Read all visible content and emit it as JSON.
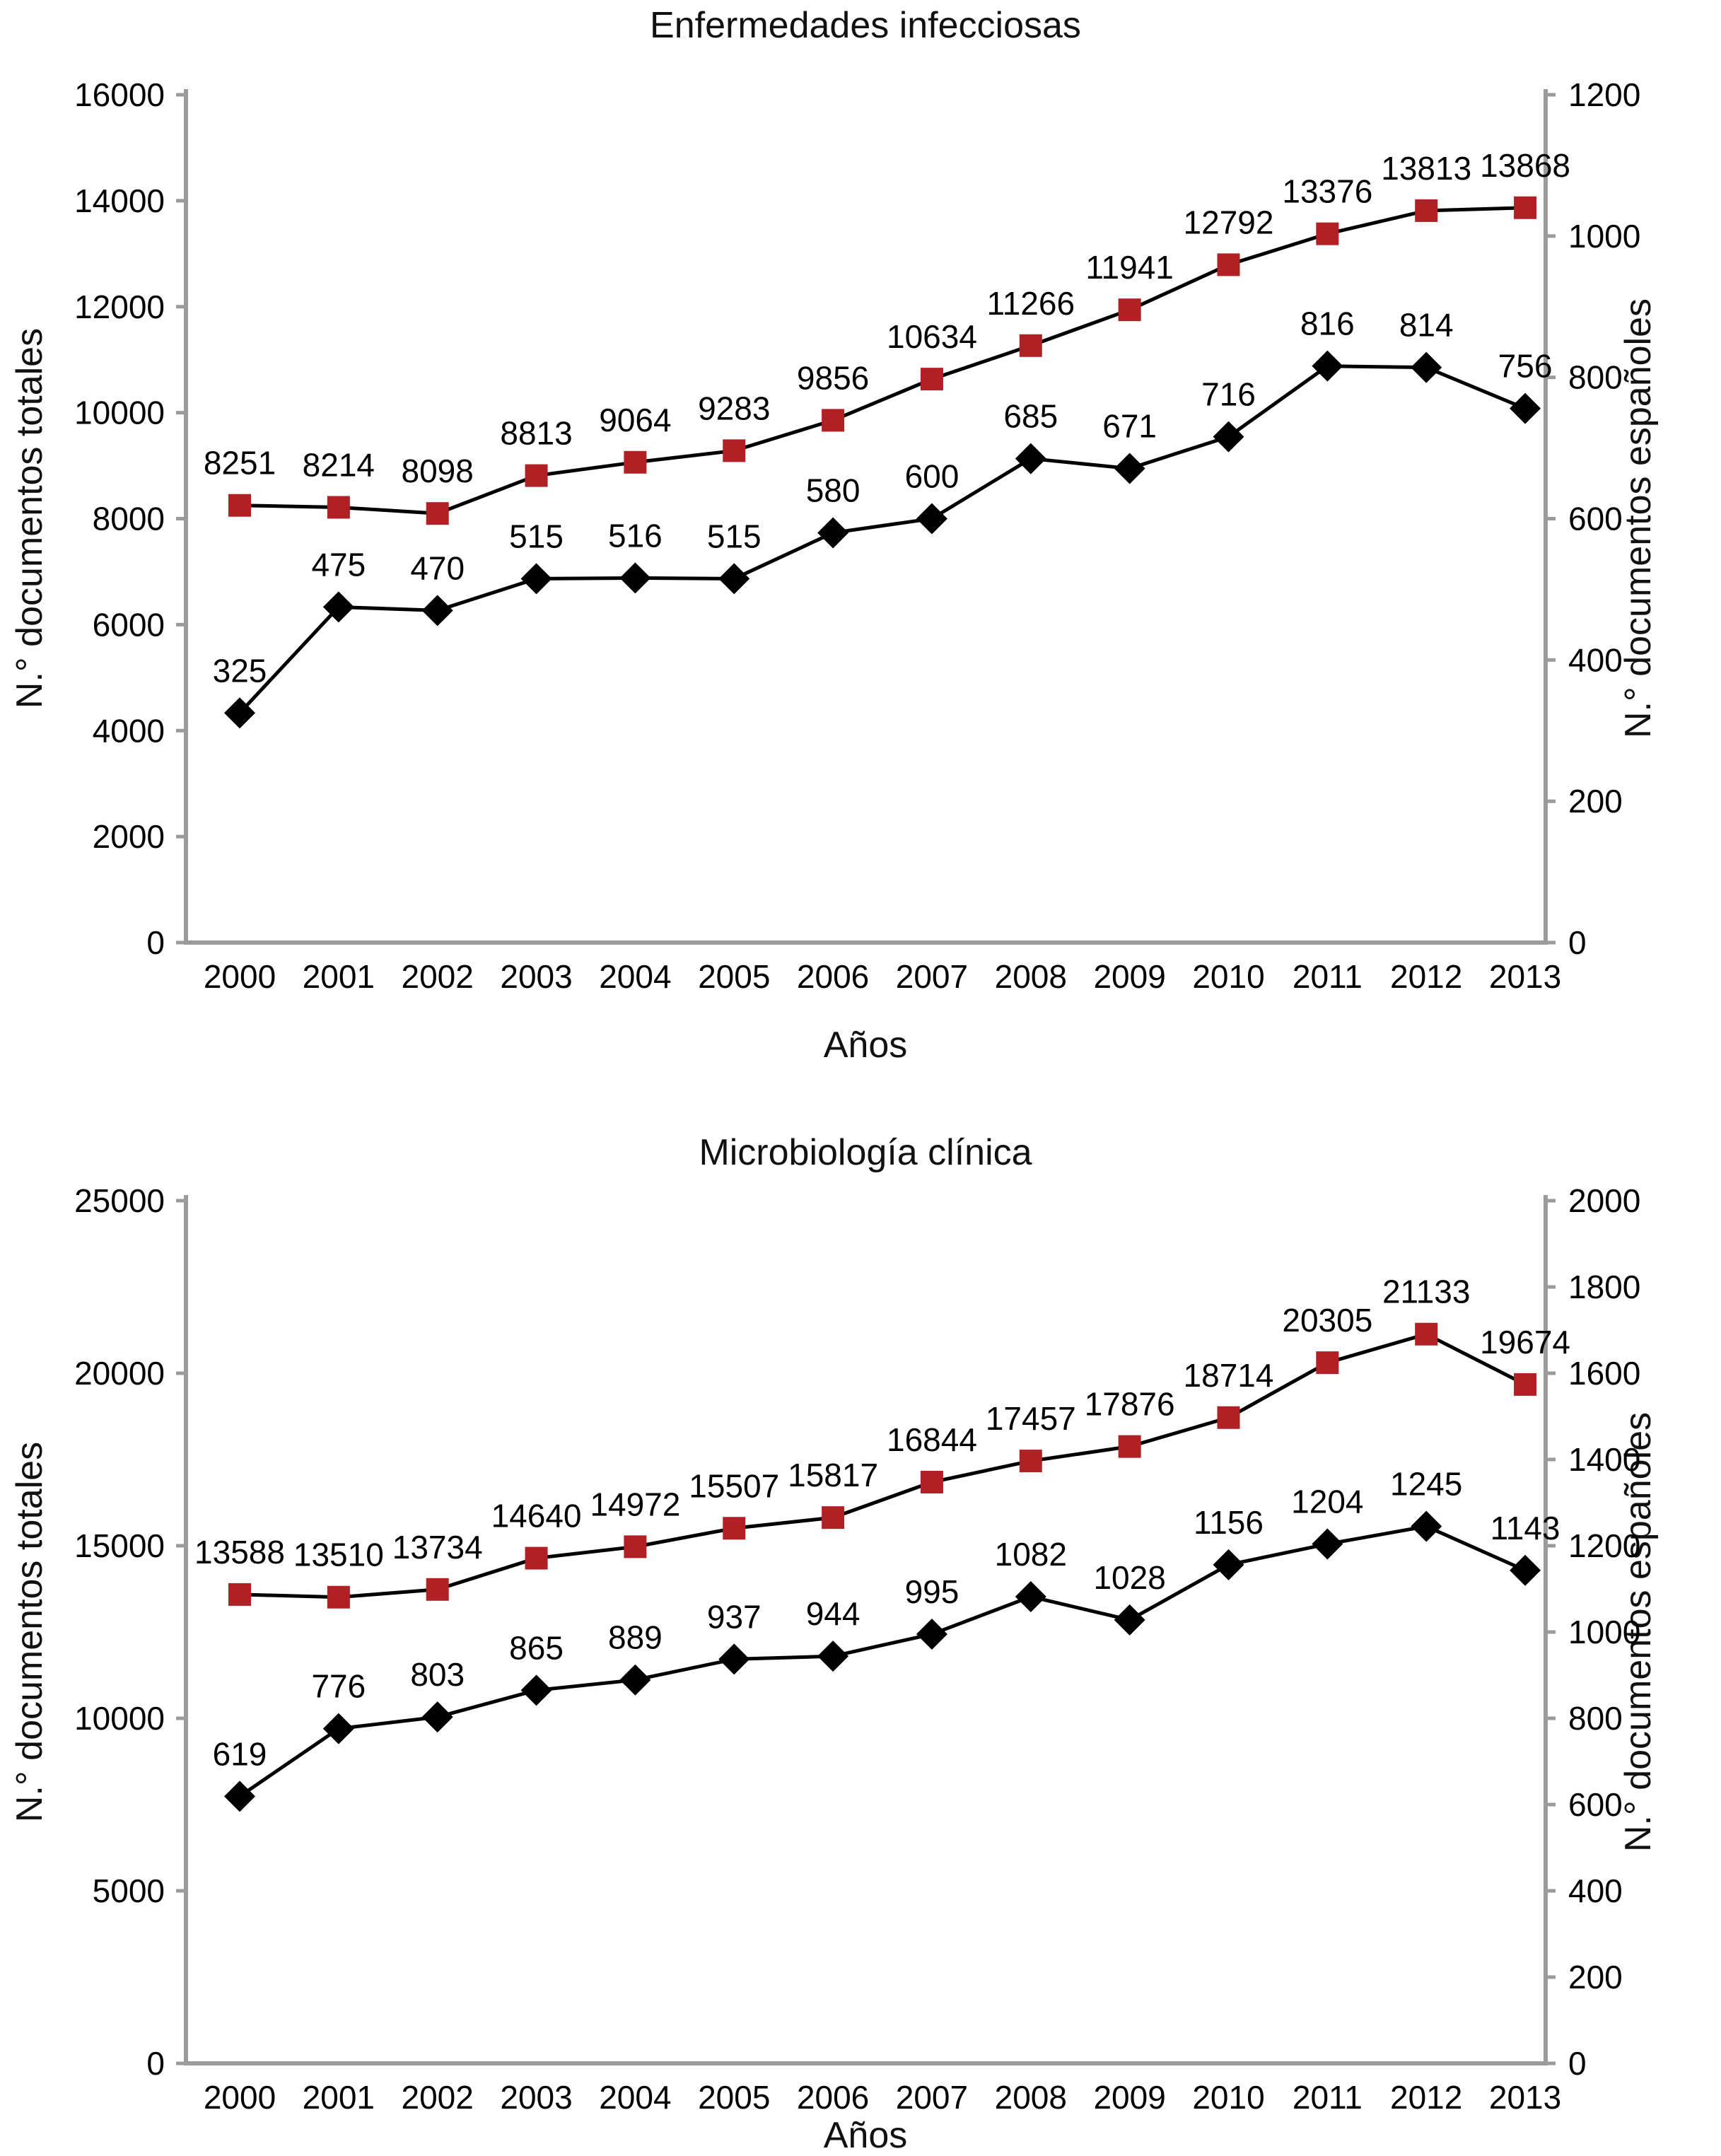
{
  "chart_data": [
    {
      "type": "line",
      "title": "Enfermedades infecciosas",
      "xlabel": "Años",
      "ylabel_left": "N.° documentos totales",
      "ylabel_right": "N.° documentos españoles",
      "categories": [
        "2000",
        "2001",
        "2002",
        "2003",
        "2004",
        "2005",
        "2006",
        "2007",
        "2008",
        "2009",
        "2010",
        "2011",
        "2012",
        "2013"
      ],
      "left_axis": {
        "min": 0,
        "max": 16000,
        "ticks": [
          0,
          2000,
          4000,
          6000,
          8000,
          10000,
          12000,
          14000,
          16000
        ]
      },
      "right_axis": {
        "min": 0,
        "max": 1200,
        "ticks": [
          0,
          200,
          400,
          600,
          800,
          1000,
          1200
        ]
      },
      "grid": false,
      "legend": false,
      "series": [
        {
          "name": "Documentos totales",
          "axis": "left",
          "marker": "square",
          "marker_color": "#b02025",
          "line_color": "#000000",
          "values": [
            8251,
            8214,
            8098,
            8813,
            9064,
            9283,
            9856,
            10634,
            11266,
            11941,
            12792,
            13376,
            13813,
            13868
          ]
        },
        {
          "name": "Documentos españoles",
          "axis": "right",
          "marker": "diamond",
          "marker_color": "#000000",
          "line_color": "#000000",
          "values": [
            325,
            475,
            470,
            515,
            516,
            515,
            580,
            600,
            685,
            671,
            716,
            816,
            814,
            756
          ]
        }
      ]
    },
    {
      "type": "line",
      "title": "Microbiología clínica",
      "xlabel": "Años",
      "ylabel_left": "N.° documentos totales",
      "ylabel_right": "N.° documentos españoles",
      "categories": [
        "2000",
        "2001",
        "2002",
        "2003",
        "2004",
        "2005",
        "2006",
        "2007",
        "2008",
        "2009",
        "2010",
        "2011",
        "2012",
        "2013"
      ],
      "left_axis": {
        "min": 0,
        "max": 25000,
        "ticks": [
          0,
          5000,
          10000,
          15000,
          20000,
          25000
        ]
      },
      "right_axis": {
        "min": 0,
        "max": 2000,
        "ticks": [
          0,
          200,
          400,
          600,
          800,
          1000,
          1200,
          1400,
          1600,
          1800,
          2000
        ]
      },
      "grid": false,
      "legend": false,
      "series": [
        {
          "name": "Documentos totales",
          "axis": "left",
          "marker": "square",
          "marker_color": "#b02025",
          "line_color": "#000000",
          "values": [
            13588,
            13510,
            13734,
            14640,
            14972,
            15507,
            15817,
            16844,
            17457,
            17876,
            18714,
            20305,
            21133,
            19674
          ]
        },
        {
          "name": "Documentos españoles",
          "axis": "right",
          "marker": "diamond",
          "marker_color": "#000000",
          "line_color": "#000000",
          "values": [
            619,
            776,
            803,
            865,
            889,
            937,
            944,
            995,
            1082,
            1028,
            1156,
            1204,
            1245,
            1143
          ]
        }
      ]
    }
  ],
  "style": {
    "spine_color": "#9b9b9b",
    "marker_red": "#b02025",
    "marker_black": "#000000"
  }
}
